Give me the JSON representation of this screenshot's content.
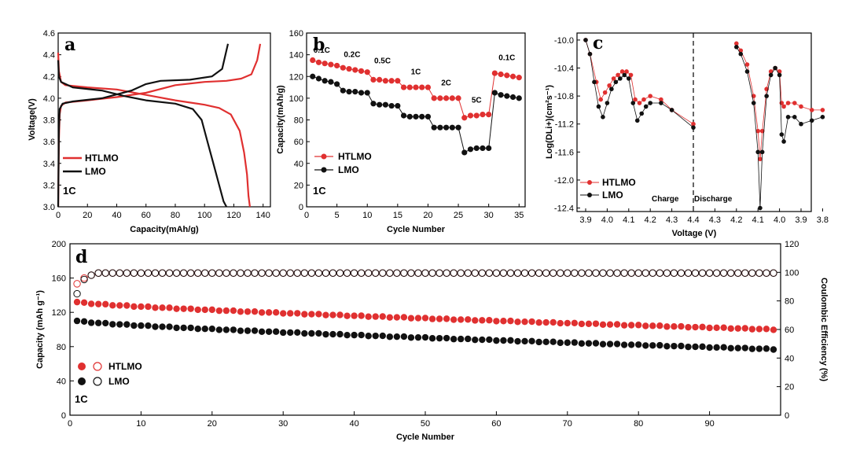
{
  "colors": {
    "htlmo": "#e03030",
    "lmo": "#111111"
  },
  "chart_data": [
    {
      "panel": "a",
      "type": "line",
      "xlabel": "Capacity(mAh/g)",
      "ylabel": "Voltage(V)",
      "xlim": [
        0,
        145
      ],
      "ylim": [
        3.0,
        4.6
      ],
      "xticks": [
        0,
        20,
        40,
        60,
        80,
        100,
        120,
        140
      ],
      "yticks": [
        3.0,
        3.2,
        3.4,
        3.6,
        3.8,
        4.0,
        4.2,
        4.4,
        4.6
      ],
      "annotation": "1C",
      "series": [
        {
          "name": "HTLMO",
          "color": "#e03030",
          "charge": [
            [
              0,
              3.0
            ],
            [
              0.5,
              3.6
            ],
            [
              1,
              3.85
            ],
            [
              2,
              3.93
            ],
            [
              5,
              3.96
            ],
            [
              20,
              3.98
            ],
            [
              40,
              4.01
            ],
            [
              60,
              4.05
            ],
            [
              80,
              4.12
            ],
            [
              100,
              4.15
            ],
            [
              115,
              4.16
            ],
            [
              125,
              4.18
            ],
            [
              132,
              4.22
            ],
            [
              136,
              4.35
            ],
            [
              138,
              4.5
            ]
          ],
          "discharge": [
            [
              0,
              4.42
            ],
            [
              0.5,
              4.25
            ],
            [
              2,
              4.15
            ],
            [
              5,
              4.12
            ],
            [
              20,
              4.1
            ],
            [
              40,
              4.08
            ],
            [
              60,
              4.03
            ],
            [
              80,
              3.98
            ],
            [
              100,
              3.94
            ],
            [
              110,
              3.91
            ],
            [
              118,
              3.85
            ],
            [
              124,
              3.7
            ],
            [
              127,
              3.5
            ],
            [
              129,
              3.3
            ],
            [
              130,
              3.1
            ],
            [
              131,
              3.0
            ]
          ]
        },
        {
          "name": "LMO",
          "color": "#111111",
          "charge": [
            [
              0,
              3.0
            ],
            [
              0.5,
              3.7
            ],
            [
              1,
              3.9
            ],
            [
              3,
              3.95
            ],
            [
              10,
              3.97
            ],
            [
              30,
              4.0
            ],
            [
              50,
              4.07
            ],
            [
              60,
              4.13
            ],
            [
              70,
              4.16
            ],
            [
              90,
              4.17
            ],
            [
              105,
              4.2
            ],
            [
              112,
              4.27
            ],
            [
              116,
              4.5
            ]
          ],
          "discharge": [
            [
              0,
              4.35
            ],
            [
              0.5,
              4.2
            ],
            [
              2,
              4.15
            ],
            [
              10,
              4.1
            ],
            [
              30,
              4.07
            ],
            [
              45,
              4.02
            ],
            [
              60,
              3.98
            ],
            [
              80,
              3.95
            ],
            [
              92,
              3.9
            ],
            [
              98,
              3.8
            ],
            [
              102,
              3.6
            ],
            [
              106,
              3.4
            ],
            [
              110,
              3.2
            ],
            [
              113,
              3.05
            ],
            [
              115,
              3.0
            ]
          ]
        }
      ]
    },
    {
      "panel": "b",
      "type": "scatter",
      "xlabel": "Cycle Number",
      "ylabel": "Capacity(mAh/g)",
      "xlim": [
        0,
        36
      ],
      "ylim": [
        0,
        160
      ],
      "xticks": [
        0,
        5,
        10,
        15,
        20,
        25,
        30,
        35
      ],
      "yticks": [
        0,
        20,
        40,
        60,
        80,
        100,
        120,
        140,
        160
      ],
      "annotation": "1C",
      "rate_labels": [
        {
          "text": "0.1C",
          "x": 2.5,
          "y": 142
        },
        {
          "text": "0.2C",
          "x": 7.5,
          "y": 138
        },
        {
          "text": "0.5C",
          "x": 12.5,
          "y": 132
        },
        {
          "text": "1C",
          "x": 18,
          "y": 122
        },
        {
          "text": "2C",
          "x": 23,
          "y": 112
        },
        {
          "text": "5C",
          "x": 28,
          "y": 96
        },
        {
          "text": "0.1C",
          "x": 33,
          "y": 135
        }
      ],
      "series": [
        {
          "name": "HTLMO",
          "color": "#e03030",
          "x": [
            1,
            2,
            3,
            4,
            5,
            6,
            7,
            8,
            9,
            10,
            11,
            12,
            13,
            14,
            15,
            16,
            17,
            18,
            19,
            20,
            21,
            22,
            23,
            24,
            25,
            26,
            27,
            28,
            29,
            30,
            31,
            32,
            33,
            34,
            35
          ],
          "y": [
            135,
            133,
            132,
            131,
            130,
            128,
            127,
            126,
            125,
            124,
            117,
            117,
            116,
            116,
            116,
            110,
            110,
            110,
            110,
            110,
            100,
            100,
            100,
            100,
            100,
            82,
            84,
            84,
            85,
            85,
            123,
            122,
            121,
            120,
            119
          ]
        },
        {
          "name": "LMO",
          "color": "#111111",
          "x": [
            1,
            2,
            3,
            4,
            5,
            6,
            7,
            8,
            9,
            10,
            11,
            12,
            13,
            14,
            15,
            16,
            17,
            18,
            19,
            20,
            21,
            22,
            23,
            24,
            25,
            26,
            27,
            28,
            29,
            30,
            31,
            32,
            33,
            34,
            35
          ],
          "y": [
            120,
            118,
            116,
            115,
            113,
            107,
            106,
            106,
            105,
            105,
            95,
            94,
            94,
            93,
            93,
            84,
            83,
            83,
            83,
            83,
            73,
            73,
            73,
            73,
            73,
            50,
            53,
            54,
            54,
            54,
            105,
            103,
            102,
            101,
            100
          ]
        }
      ]
    },
    {
      "panel": "c",
      "type": "line",
      "xlabel": "Voltage (V)",
      "ylabel": "Log(DLi+)(cm²s⁻¹)",
      "ylim": [
        -12.45,
        -9.9
      ],
      "xticks_charge": [
        "3.9",
        "4.0",
        "4.1",
        "4.2",
        "4.3",
        "4.4"
      ],
      "xticks_discharge": [
        "4.3",
        "4.2",
        "4.1",
        "4.0",
        "3.9",
        "3.8"
      ],
      "yticks": [
        -10.0,
        -10.4,
        -10.8,
        -11.2,
        -11.6,
        -12.0,
        -12.4
      ],
      "section_labels": {
        "charge": "Charge",
        "discharge": "Discharge"
      },
      "series": [
        {
          "name": "HTLMO",
          "color": "#e03030",
          "charge": [
            [
              3.9,
              -10.0
            ],
            [
              3.92,
              -10.2
            ],
            [
              3.95,
              -10.6
            ],
            [
              3.97,
              -10.85
            ],
            [
              3.99,
              -10.75
            ],
            [
              4.01,
              -10.65
            ],
            [
              4.03,
              -10.55
            ],
            [
              4.05,
              -10.5
            ],
            [
              4.07,
              -10.45
            ],
            [
              4.09,
              -10.45
            ],
            [
              4.11,
              -10.5
            ],
            [
              4.13,
              -10.85
            ],
            [
              4.15,
              -10.9
            ],
            [
              4.17,
              -10.85
            ],
            [
              4.2,
              -10.8
            ],
            [
              4.25,
              -10.85
            ],
            [
              4.3,
              -11.0
            ],
            [
              4.4,
              -11.2
            ]
          ],
          "discharge": [
            [
              4.2,
              -10.05
            ],
            [
              4.18,
              -10.15
            ],
            [
              4.15,
              -10.35
            ],
            [
              4.12,
              -10.8
            ],
            [
              4.1,
              -11.3
            ],
            [
              4.09,
              -11.7
            ],
            [
              4.08,
              -11.3
            ],
            [
              4.06,
              -10.7
            ],
            [
              4.04,
              -10.45
            ],
            [
              4.02,
              -10.4
            ],
            [
              4.0,
              -10.45
            ],
            [
              3.99,
              -10.9
            ],
            [
              3.98,
              -10.95
            ],
            [
              3.96,
              -10.9
            ],
            [
              3.93,
              -10.9
            ],
            [
              3.9,
              -10.95
            ],
            [
              3.85,
              -11.0
            ],
            [
              3.8,
              -11.0
            ]
          ]
        },
        {
          "name": "LMO",
          "color": "#111111",
          "charge": [
            [
              3.9,
              -10.0
            ],
            [
              3.92,
              -10.2
            ],
            [
              3.94,
              -10.6
            ],
            [
              3.96,
              -10.95
            ],
            [
              3.98,
              -11.1
            ],
            [
              4.0,
              -10.9
            ],
            [
              4.02,
              -10.7
            ],
            [
              4.04,
              -10.6
            ],
            [
              4.06,
              -10.55
            ],
            [
              4.08,
              -10.5
            ],
            [
              4.1,
              -10.55
            ],
            [
              4.12,
              -10.9
            ],
            [
              4.14,
              -11.15
            ],
            [
              4.16,
              -11.05
            ],
            [
              4.18,
              -10.95
            ],
            [
              4.2,
              -10.9
            ],
            [
              4.25,
              -10.9
            ],
            [
              4.3,
              -11.0
            ],
            [
              4.4,
              -11.25
            ]
          ],
          "discharge": [
            [
              4.2,
              -10.1
            ],
            [
              4.18,
              -10.2
            ],
            [
              4.15,
              -10.45
            ],
            [
              4.12,
              -10.9
            ],
            [
              4.1,
              -11.6
            ],
            [
              4.09,
              -12.4
            ],
            [
              4.08,
              -11.6
            ],
            [
              4.06,
              -10.8
            ],
            [
              4.04,
              -10.5
            ],
            [
              4.02,
              -10.4
            ],
            [
              4.0,
              -10.5
            ],
            [
              3.99,
              -11.35
            ],
            [
              3.98,
              -11.45
            ],
            [
              3.96,
              -11.1
            ],
            [
              3.93,
              -11.1
            ],
            [
              3.9,
              -11.2
            ],
            [
              3.85,
              -11.15
            ],
            [
              3.8,
              -11.1
            ]
          ]
        }
      ]
    },
    {
      "panel": "d",
      "type": "scatter",
      "xlabel": "Cycle Number",
      "ylabel": "Capacity (mAh g⁻¹)",
      "y2label": "Coulombic Efficiency (%)",
      "xlim": [
        0,
        100
      ],
      "ylim": [
        0,
        200
      ],
      "y2lim": [
        0,
        120
      ],
      "xticks": [
        0,
        10,
        20,
        30,
        40,
        50,
        60,
        70,
        80,
        90
      ],
      "yticks": [
        0,
        40,
        80,
        120,
        160,
        200
      ],
      "y2ticks": [
        0,
        20,
        40,
        60,
        80,
        100,
        120
      ],
      "annotation": "1C",
      "series": [
        {
          "name": "HTLMO",
          "color": "#e03030",
          "kind": "capacity",
          "cycles": [
            1,
            99
          ],
          "start": 132,
          "end": 100,
          "shape": "decay"
        },
        {
          "name": "LMO",
          "color": "#111111",
          "kind": "capacity",
          "cycles": [
            1,
            99
          ],
          "start": 110,
          "end": 77,
          "shape": "decay"
        },
        {
          "name": "HTLMO",
          "color": "#e03030",
          "kind": "coulombic_efficiency",
          "cycles": [
            1,
            99
          ],
          "first": [
            92,
            96,
            98
          ],
          "steady": 99.5
        },
        {
          "name": "LMO",
          "color": "#111111",
          "kind": "coulombic_efficiency",
          "cycles": [
            1,
            99
          ],
          "first": [
            85,
            95,
            98
          ],
          "steady": 99.5
        }
      ]
    }
  ]
}
